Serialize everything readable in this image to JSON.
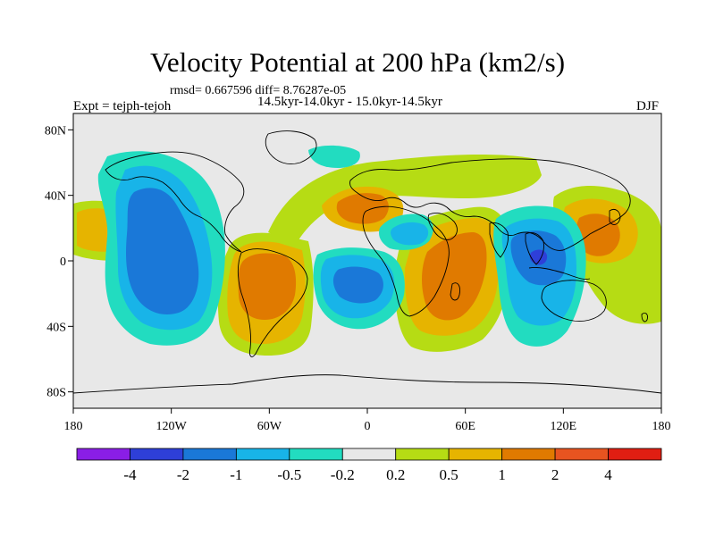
{
  "title": "Velocity Potential at 200 hPa (km2/s)",
  "stats": "rmsd= 0.667596 diff= 8.76287e-05",
  "period": "14.5kyr-14.0kyr - 15.0kyr-14.5kyr",
  "experiment": "Expt = tejph-tejoh",
  "season": "DJF",
  "axes": {
    "lat_labels": [
      {
        "value": 80,
        "label": "80N"
      },
      {
        "value": 40,
        "label": "40N"
      },
      {
        "value": 0,
        "label": "0"
      },
      {
        "value": -40,
        "label": "40S"
      },
      {
        "value": -80,
        "label": "80S"
      }
    ],
    "lon_labels": [
      {
        "value": -180,
        "label": "180"
      },
      {
        "value": -120,
        "label": "120W"
      },
      {
        "value": -60,
        "label": "60W"
      },
      {
        "value": 0,
        "label": "0"
      },
      {
        "value": 60,
        "label": "60E"
      },
      {
        "value": 120,
        "label": "120E"
      },
      {
        "value": 180,
        "label": "180"
      }
    ],
    "lon_range": [
      -180,
      180
    ],
    "lat_range": [
      -90,
      90
    ]
  },
  "colorbar": {
    "colors": [
      "#8a1ee6",
      "#2e3fd8",
      "#1a78d8",
      "#18b4e8",
      "#22dcc0",
      "#e8e8e8",
      "#b6dc14",
      "#e6b400",
      "#e07a00",
      "#e85420",
      "#e01e12"
    ],
    "labels": [
      "-4",
      "-2",
      "-1",
      "-0.5",
      "-0.2",
      "0.2",
      "0.5",
      "1",
      "2",
      "4"
    ]
  },
  "colors": {
    "background": "#e8e8e8",
    "coast": "#000000"
  }
}
